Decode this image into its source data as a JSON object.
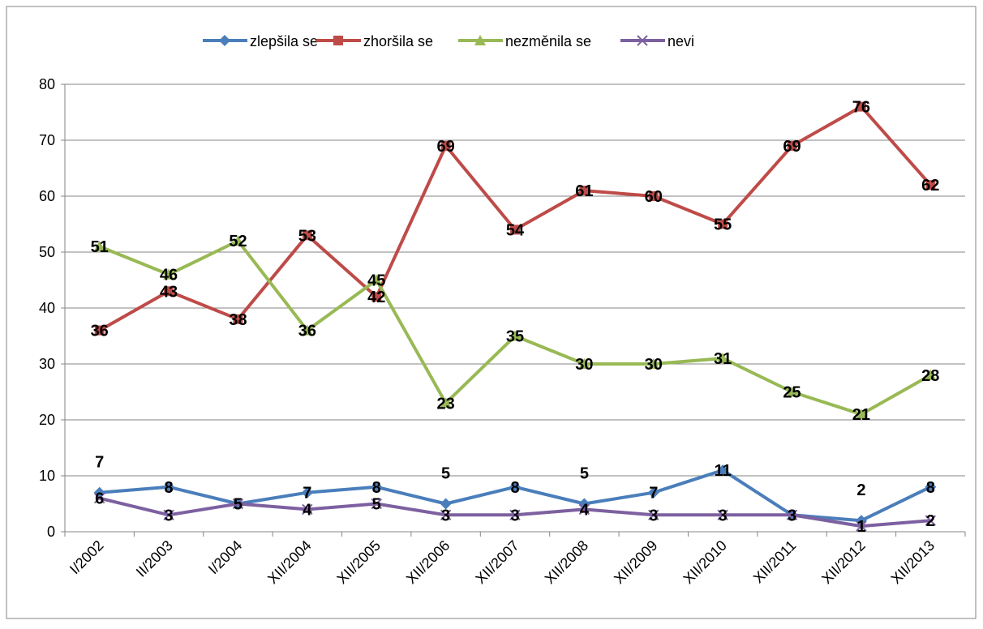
{
  "chart_data": {
    "type": "line",
    "categories": [
      "I/2002",
      "II/2003",
      "I/2004",
      "XII/2004",
      "XII/2005",
      "XII/2006",
      "XII/2007",
      "XII/2008",
      "XII/2009",
      "XII/2010",
      "XII/2011",
      "XII/2012",
      "XII/2013"
    ],
    "series": [
      {
        "name": "zlepšila se",
        "color": "#4a7ebb",
        "marker": "diamond",
        "values": [
          7,
          8,
          5,
          7,
          8,
          5,
          8,
          5,
          7,
          11,
          3,
          2,
          8
        ]
      },
      {
        "name": "zhoršila se",
        "color": "#be4b48",
        "marker": "square",
        "values": [
          36,
          43,
          38,
          53,
          42,
          69,
          54,
          61,
          60,
          55,
          69,
          76,
          62
        ]
      },
      {
        "name": "nezměnila se",
        "color": "#98b954",
        "marker": "triangle",
        "values": [
          51,
          46,
          52,
          36,
          45,
          23,
          35,
          30,
          30,
          31,
          25,
          21,
          28
        ]
      },
      {
        "name": "nevi",
        "color": "#7d60a0",
        "marker": "x",
        "values": [
          6,
          3,
          5,
          4,
          5,
          3,
          3,
          4,
          3,
          3,
          3,
          1,
          2
        ]
      }
    ],
    "ylim": [
      0,
      80
    ],
    "yticks": [
      0,
      10,
      20,
      30,
      40,
      50,
      60,
      70,
      80
    ],
    "grid": true,
    "legend": "top"
  }
}
